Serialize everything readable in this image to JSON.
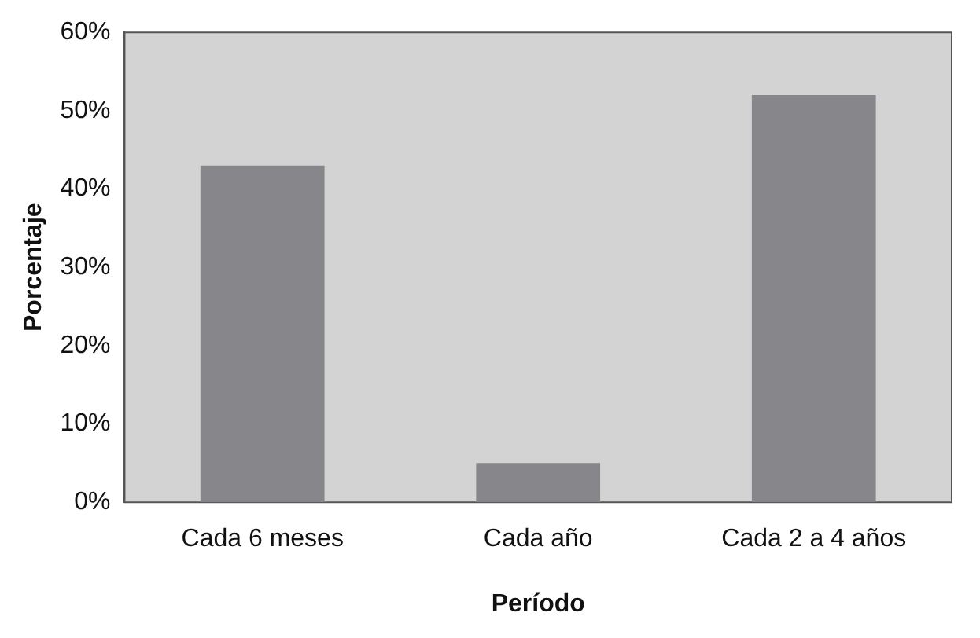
{
  "chart_data": {
    "type": "bar",
    "xlabel": "Período",
    "ylabel": "Porcentaje",
    "categories": [
      "Cada 6 meses",
      "Cada año",
      "Cada 2 a 4 años"
    ],
    "values": [
      43,
      5,
      52
    ],
    "color": "#87878b",
    "ylim": [
      0,
      60
    ],
    "yticks": [
      {
        "value": 0,
        "label": "0%"
      },
      {
        "value": 10,
        "label": "10%"
      },
      {
        "value": 20,
        "label": "20%"
      },
      {
        "value": 30,
        "label": "30%"
      },
      {
        "value": 40,
        "label": "40%"
      },
      {
        "value": 50,
        "label": "50%"
      },
      {
        "value": 60,
        "label": "60%"
      }
    ],
    "grid": false,
    "legend": false
  }
}
